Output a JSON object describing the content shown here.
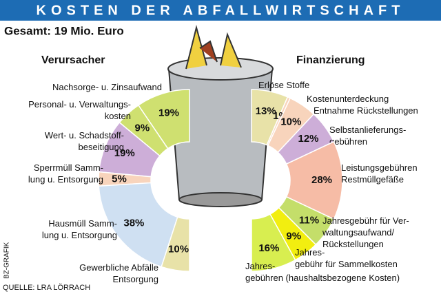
{
  "header": {
    "title": "KOSTEN DER ABFALLWIRTSCHAFT",
    "subtitle": "Gesamt: 19 Mio. Euro"
  },
  "footer": {
    "source": "QUELLE: LRA LÖRRACH",
    "credit": "BZ-GRAFIK"
  },
  "chart_data": [
    {
      "type": "pie",
      "title": "Verursacher",
      "categories": [
        "Nachsorge- u. Zinsaufwand",
        "Personal- u. Verwaltungs-\nkosten",
        "Wert- u. Schadstoff-\nbeseitigung",
        "Sperrmüll Samm-\nlung u. Entsorgung",
        "Hausmüll Samm-\nlung u. Entsorgung",
        "Gewerbliche Abfälle\nEntsorgung"
      ],
      "values": [
        19,
        9,
        19,
        5,
        38,
        10
      ],
      "value_labels": [
        "19%",
        "9%",
        "19%",
        "5%",
        "38%",
        "10%"
      ],
      "colors": [
        "#cfe070",
        "#cfe070",
        "#cdaed8",
        "#f8d4bc",
        "#cfe0f2",
        "#e8e2a8"
      ]
    },
    {
      "type": "pie",
      "title": "Finanzierung",
      "categories": [
        "Erlöse Stoffe",
        "Kostenunterdeckung",
        "Entnahme Rückstellungen",
        "Selbstanlieferungs-\ngebühren",
        "Leistungsgebühren\nRestmüllgefäße",
        "Jahresgebühr für Ver-\nwaltungsaufwand/\nRückstellungen",
        "Jahres-\ngebühr für Sammelkosten",
        "Jahres-\ngebühren (haushaltsbezogene Kosten)"
      ],
      "values": [
        13,
        1,
        10,
        12,
        28,
        11,
        9,
        16
      ],
      "value_labels": [
        "13%",
        "1%",
        "10%",
        "12%",
        "28%",
        "11%",
        "9%",
        "16%"
      ],
      "colors": [
        "#e8e2a8",
        "#f8d4bc",
        "#f8d4bc",
        "#cdaed8",
        "#f6bca6",
        "#c4de6a",
        "#f2ee10",
        "#d8ee50"
      ]
    }
  ]
}
